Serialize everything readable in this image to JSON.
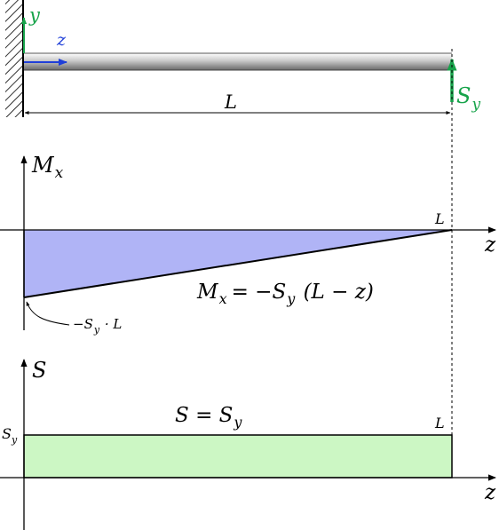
{
  "colors": {
    "y_axis_green": "#17a34a",
    "z_axis_blue": "#1f3fd8",
    "moment_fill": "#b0b4f6",
    "shear_fill": "#ccf7c4",
    "load_green": "#17a34a",
    "ink": "#000000"
  },
  "beam": {
    "y_label": "y",
    "z_label": "z",
    "length_label": "L",
    "load_label_main": "S",
    "load_label_sub": "y"
  },
  "moment_diagram": {
    "axis_label_main": "M",
    "axis_label_sub": "x",
    "z_label": "z",
    "end_label": "L",
    "equation": {
      "lhs_main": "M",
      "lhs_sub": "x",
      "rhs_pre": "= −S",
      "rhs_sub": "y",
      "rhs_post": " (L − z)"
    },
    "min_annotation": {
      "pre": "−S",
      "sub": "y",
      "post": " · L"
    }
  },
  "shear_diagram": {
    "axis_label": "S",
    "z_label": "z",
    "end_label": "L",
    "left_value_main": "S",
    "left_value_sub": "y",
    "equation": {
      "lhs": "S = S",
      "sub": "y"
    }
  }
}
